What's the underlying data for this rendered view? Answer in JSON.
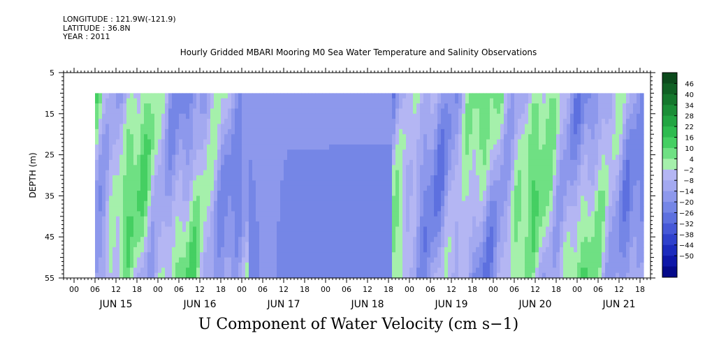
{
  "header": {
    "longitude": "LONGITUDE : 121.9W(-121.9)",
    "latitude": "LATITUDE : 36.8N",
    "year": "YEAR : 2011",
    "title": "Hourly Gridded MBARI Mooring M0 Sea Water Temperature and Salinity Observations"
  },
  "chart_data": {
    "type": "heatmap",
    "title": "Hourly Gridded MBARI Mooring M0 Sea Water Temperature and Salinity Observations",
    "variable_label": "U Component of Water Velocity (cm s−1)",
    "ylabel": "DEPTH (m)",
    "y_reversed": true,
    "ylim": [
      5,
      55
    ],
    "y_ticks": [
      5,
      15,
      25,
      35,
      45,
      55
    ],
    "data_depth_range": [
      10,
      55
    ],
    "x_hour_ticks": [
      "00",
      "06",
      "12",
      "18",
      "00",
      "06",
      "12",
      "18",
      "00",
      "06",
      "12",
      "18",
      "00",
      "06",
      "12",
      "18",
      "00",
      "06",
      "12",
      "18",
      "00",
      "06",
      "12",
      "18",
      "00",
      "06",
      "12",
      "18"
    ],
    "x_day_labels": [
      "JUN 15",
      "JUN 16",
      "JUN 17",
      "JUN 18",
      "JUN 19",
      "JUN 20",
      "JUN 21"
    ],
    "x_range_hours": [
      -3,
      165
    ],
    "data_time_range_hours": [
      6,
      163
    ],
    "colorbar": {
      "levels": [
        "46",
        "40",
        "34",
        "28",
        "22",
        "16",
        "10",
        "4",
        "−2",
        "−8",
        "−14",
        "−20",
        "−26",
        "−32",
        "−38",
        "−44",
        "−50"
      ],
      "colors_top_to_bottom": [
        "#0c4a1c",
        "#106024",
        "#15772d",
        "#1b8e37",
        "#22a542",
        "#2ebb4f",
        "#45cf62",
        "#6fe083",
        "#a5f0ab",
        "#b4b6f3",
        "#a3a9f0",
        "#8d98ec",
        "#7586e6",
        "#5d70df",
        "#4658d7",
        "#2f41cc",
        "#1c2bbd",
        "#0e17a8",
        "#050a8a"
      ]
    },
    "legend": "right"
  }
}
